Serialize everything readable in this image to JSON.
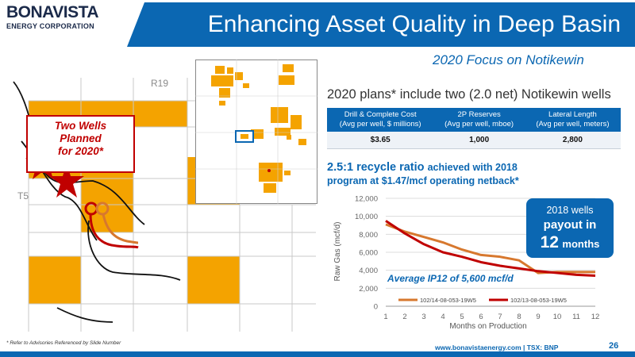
{
  "logo": {
    "name": "BONAVISTA",
    "sub": "ENERGY CORPORATION"
  },
  "header": {
    "title": "Enhancing Asset Quality in Deep Basin"
  },
  "focus": "2020 Focus on Notikewin",
  "plans_text": "2020 plans* include two (2.0 net) Notikewin wells",
  "map": {
    "callout": [
      "Two Wells",
      "Planned",
      "for 2020*"
    ],
    "label_range": "R19",
    "label_township": "T5"
  },
  "specs_table": {
    "headers": [
      [
        "Drill & Complete Cost",
        "(Avg per well, $ millions)"
      ],
      [
        "2P Reserves",
        "(Avg per well, mboe)"
      ],
      [
        "Lateral Length",
        "(Avg per well, meters)"
      ]
    ],
    "values": [
      "$3.65",
      "1,000",
      "2,800"
    ]
  },
  "recycle": {
    "ratio": "2.5:1 recycle ratio",
    "line1_rest": "achieved with 2018",
    "line2": "program at $1.47/mcf operating netback*"
  },
  "payout": {
    "line1": "2018 wells",
    "line2": "payout in",
    "number": "12",
    "unit": "months"
  },
  "chart_data": {
    "type": "line",
    "xlabel": "Months on Production",
    "ylabel": "Raw Gas (mcf/d)",
    "x": [
      1,
      2,
      3,
      4,
      5,
      6,
      7,
      8,
      9,
      10,
      11,
      12
    ],
    "ylim": [
      0,
      12000
    ],
    "yticks": [
      0,
      2000,
      4000,
      6000,
      8000,
      10000,
      12000
    ],
    "ytick_labels": [
      "0",
      "2,000",
      "4,000",
      "6,000",
      "8,000",
      "10,000",
      "12,000"
    ],
    "grid": "horizontal",
    "legend": "bottom",
    "annotation": "Average IP12 of 5,600 mcf/d",
    "series": [
      {
        "name": "102/14-08-053-19W5",
        "color": "#d7782e",
        "values": [
          9100,
          8300,
          7700,
          7100,
          6300,
          5700,
          5500,
          5100,
          3700,
          3800,
          3800,
          3800
        ]
      },
      {
        "name": "102/13-08-053-19W5",
        "color": "#c00000",
        "values": [
          9500,
          8100,
          6900,
          6000,
          5500,
          4900,
          4500,
          4200,
          3900,
          3700,
          3500,
          3400
        ]
      }
    ]
  },
  "footer": {
    "note": "* Refer to Advisories Referenced by Slide Number",
    "website": "www.bonavistaenergy.com  |  TSX: BNP",
    "page": "26"
  }
}
